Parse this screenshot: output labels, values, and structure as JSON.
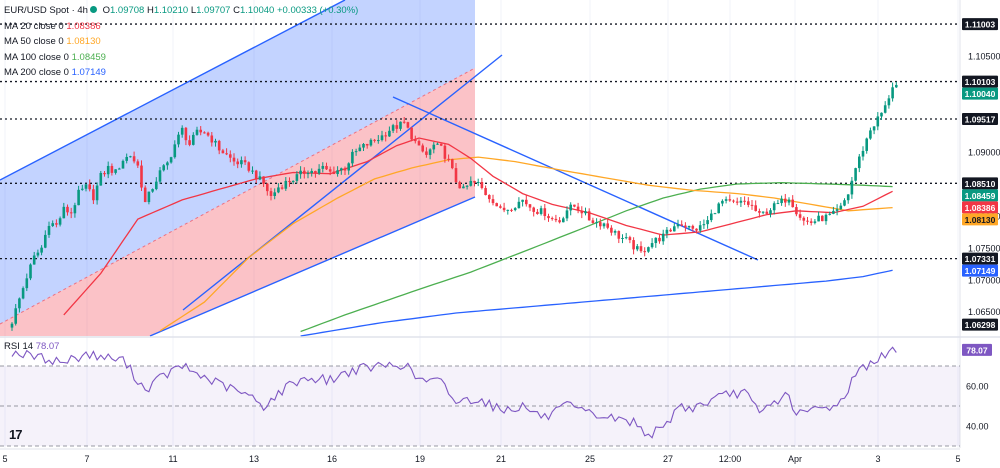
{
  "header": {
    "symbol": "EUR/USD Spot · 4h",
    "ohlc": [
      {
        "label": "O",
        "value": "1.09708"
      },
      {
        "label": "H",
        "value": "1.10210"
      },
      {
        "label": "L",
        "value": "1.09707"
      },
      {
        "label": "C",
        "value": "1.10040"
      }
    ],
    "change": "+0.00333 (+0.30%)"
  },
  "moving_averages": [
    {
      "label": "MA 20 close 0",
      "value": "1.08386",
      "color": "#f23645"
    },
    {
      "label": "MA 50 close 0",
      "value": "1.08130",
      "color": "#ffa726"
    },
    {
      "label": "MA 100 close 0",
      "value": "1.08459",
      "color": "#4caf50"
    },
    {
      "label": "MA 200 close 0",
      "value": "1.07149",
      "color": "#2962ff"
    }
  ],
  "rsi": {
    "label": "RSI 14",
    "value": "78.07",
    "color": "#7e57c2"
  },
  "logo": "17",
  "colors": {
    "up": "#089981",
    "down": "#f23645",
    "line": "#2962ff"
  },
  "chart_data": {
    "type": "candlestick",
    "price_axis": {
      "ticks": [
        "1.06500",
        "1.07000",
        "1.07500",
        "1.08000",
        "1.09000",
        "1.10500"
      ],
      "range": [
        1.0612,
        1.1138
      ]
    },
    "rsi_axis": {
      "ticks": [
        "40.00",
        "60.00"
      ],
      "range": [
        29,
        84
      ]
    },
    "x_axis": {
      "ticks": [
        "5",
        "7",
        "11",
        "13",
        "16",
        "19",
        "21",
        "25",
        "27",
        "12:00",
        "Apr",
        "3",
        "5"
      ]
    },
    "price_labels": [
      {
        "value": "1.11003",
        "style": "dark"
      },
      {
        "value": "1.10103",
        "style": "dark"
      },
      {
        "value": "1.10040",
        "style": "green"
      },
      {
        "value": "1.09517",
        "style": "dark"
      },
      {
        "value": "1.08510",
        "style": "dark"
      },
      {
        "value": "1.08459",
        "style": "green"
      },
      {
        "value": "1.08386",
        "style": "red"
      },
      {
        "value": "1.08130",
        "style": "orange"
      },
      {
        "value": "1.07331",
        "style": "dark"
      },
      {
        "value": "1.07149",
        "style": "blue"
      },
      {
        "value": "1.06298",
        "style": "dark"
      }
    ],
    "rsi_label": {
      "value": "78.07"
    },
    "horizontal_levels": [
      1.11003,
      1.10103,
      1.09517,
      1.0851,
      1.07331
    ],
    "candle_anchors": [
      [
        0,
        1.0635
      ],
      [
        2,
        1.067
      ],
      [
        4,
        1.0705
      ],
      [
        6,
        1.0735
      ],
      [
        8,
        1.075
      ],
      [
        10,
        1.079
      ],
      [
        12,
        1.0785
      ],
      [
        14,
        1.081
      ],
      [
        16,
        1.0805
      ],
      [
        18,
        1.0835
      ],
      [
        20,
        1.0845
      ],
      [
        22,
        1.083
      ],
      [
        24,
        1.0862
      ],
      [
        26,
        1.0875
      ],
      [
        28,
        1.0868
      ],
      [
        30,
        1.0888
      ],
      [
        32,
        1.0895
      ],
      [
        34,
        1.0878
      ],
      [
        36,
        1.082
      ],
      [
        38,
        1.0845
      ],
      [
        40,
        1.0868
      ],
      [
        42,
        1.0882
      ],
      [
        44,
        1.0912
      ],
      [
        46,
        1.0935
      ],
      [
        48,
        1.0912
      ],
      [
        50,
        1.093
      ],
      [
        52,
        1.0932
      ],
      [
        54,
        1.092
      ],
      [
        56,
        1.0905
      ],
      [
        58,
        1.0895
      ],
      [
        60,
        1.0885
      ],
      [
        62,
        1.0882
      ],
      [
        64,
        1.0875
      ],
      [
        66,
        1.0862
      ],
      [
        68,
        1.085
      ],
      [
        70,
        1.083
      ],
      [
        72,
        1.0845
      ],
      [
        74,
        1.0852
      ],
      [
        76,
        1.0858
      ],
      [
        78,
        1.0865
      ],
      [
        80,
        1.0872
      ],
      [
        82,
        1.0868
      ],
      [
        84,
        1.0875
      ],
      [
        86,
        1.0868
      ],
      [
        88,
        1.0872
      ],
      [
        90,
        1.0875
      ],
      [
        92,
        1.0895
      ],
      [
        94,
        1.0905
      ],
      [
        96,
        1.0912
      ],
      [
        98,
        1.0918
      ],
      [
        100,
        1.0925
      ],
      [
        102,
        1.0935
      ],
      [
        104,
        1.094
      ],
      [
        106,
        1.0945
      ],
      [
        108,
        1.0925
      ],
      [
        110,
        1.0905
      ],
      [
        112,
        1.0895
      ],
      [
        114,
        1.091
      ],
      [
        116,
        1.0905
      ],
      [
        118,
        1.0885
      ],
      [
        120,
        1.0855
      ],
      [
        122,
        1.084
      ],
      [
        124,
        1.0852
      ],
      [
        126,
        1.085
      ],
      [
        128,
        1.0835
      ],
      [
        130,
        1.0825
      ],
      [
        132,
        1.0808
      ],
      [
        134,
        1.0812
      ],
      [
        136,
        1.0818
      ],
      [
        138,
        1.0825
      ],
      [
        140,
        1.0815
      ],
      [
        142,
        1.0808
      ],
      [
        144,
        1.0805
      ],
      [
        146,
        1.0795
      ],
      [
        148,
        1.0792
      ],
      [
        150,
        1.081
      ],
      [
        152,
        1.0815
      ],
      [
        154,
        1.0808
      ],
      [
        156,
        1.0795
      ],
      [
        158,
        1.079
      ],
      [
        160,
        1.0788
      ],
      [
        162,
        1.0778
      ],
      [
        164,
        1.0768
      ],
      [
        166,
        1.0762
      ],
      [
        168,
        1.0752
      ],
      [
        170,
        1.0742
      ],
      [
        172,
        1.0755
      ],
      [
        174,
        1.0762
      ],
      [
        176,
        1.0768
      ],
      [
        178,
        1.0778
      ],
      [
        180,
        1.079
      ],
      [
        182,
        1.0785
      ],
      [
        184,
        1.0778
      ],
      [
        186,
        1.0782
      ],
      [
        188,
        1.0792
      ],
      [
        190,
        1.081
      ],
      [
        192,
        1.0822
      ],
      [
        194,
        1.082
      ],
      [
        196,
        1.0818
      ],
      [
        198,
        1.0822
      ],
      [
        200,
        1.0815
      ],
      [
        202,
        1.08
      ],
      [
        204,
        1.0808
      ],
      [
        206,
        1.0815
      ],
      [
        208,
        1.0822
      ],
      [
        210,
        1.083
      ],
      [
        212,
        1.0808
      ],
      [
        214,
        1.0792
      ],
      [
        216,
        1.079
      ],
      [
        218,
        1.0795
      ],
      [
        220,
        1.0798
      ],
      [
        222,
        1.0802
      ],
      [
        224,
        1.0812
      ],
      [
        226,
        1.0835
      ],
      [
        228,
        1.0875
      ],
      [
        230,
        1.0905
      ],
      [
        232,
        1.0935
      ],
      [
        234,
        1.0952
      ],
      [
        236,
        1.097
      ],
      [
        238,
        1.1004
      ]
    ],
    "rsi_anchors": [
      [
        0,
        77
      ],
      [
        8,
        74
      ],
      [
        14,
        72
      ],
      [
        20,
        76
      ],
      [
        26,
        74
      ],
      [
        30,
        73
      ],
      [
        36,
        58
      ],
      [
        40,
        64
      ],
      [
        46,
        70
      ],
      [
        50,
        66
      ],
      [
        56,
        61
      ],
      [
        60,
        58
      ],
      [
        64,
        55
      ],
      [
        68,
        50
      ],
      [
        72,
        56
      ],
      [
        76,
        62
      ],
      [
        80,
        64
      ],
      [
        86,
        63
      ],
      [
        92,
        68
      ],
      [
        100,
        70
      ],
      [
        106,
        71
      ],
      [
        110,
        63
      ],
      [
        116,
        62
      ],
      [
        120,
        52
      ],
      [
        126,
        54
      ],
      [
        132,
        48
      ],
      [
        138,
        50
      ],
      [
        144,
        44
      ],
      [
        150,
        50
      ],
      [
        156,
        46
      ],
      [
        162,
        44
      ],
      [
        168,
        42
      ],
      [
        172,
        36
      ],
      [
        176,
        38
      ],
      [
        180,
        50
      ],
      [
        184,
        49
      ],
      [
        188,
        52
      ],
      [
        194,
        56
      ],
      [
        198,
        57
      ],
      [
        202,
        46
      ],
      [
        206,
        52
      ],
      [
        210,
        56
      ],
      [
        212,
        45
      ],
      [
        216,
        48
      ],
      [
        220,
        49
      ],
      [
        224,
        52
      ],
      [
        228,
        66
      ],
      [
        232,
        72
      ],
      [
        236,
        75
      ],
      [
        238,
        78.07
      ]
    ]
  }
}
